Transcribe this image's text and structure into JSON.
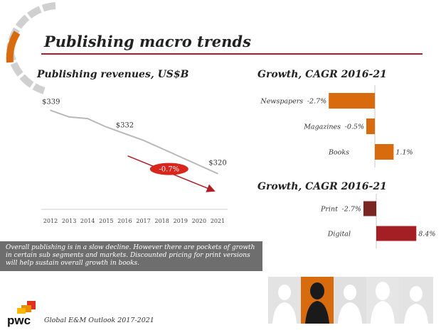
{
  "page": {
    "title": "Publishing macro trends",
    "footer": "Global E&M Outlook 2017-2021",
    "brand": "pwc",
    "note": "Overall publishing is in a slow decline. However there are pockets of growth in certain sub segments and markets.  Discounted pricing for print versions will help sustain overall growth in books."
  },
  "colors": {
    "accent_red": "#b11d24",
    "orange": "#d86b0d",
    "dark_red": "#7a2622",
    "crimson": "#a31f23",
    "gray_line": "#b8b8b8"
  },
  "chart_data": [
    {
      "type": "line",
      "title": "Publishing revenues, US$B",
      "x": [
        "2012",
        "2013",
        "2014",
        "2015",
        "2016",
        "2017",
        "2018",
        "2019",
        "2020",
        "2021"
      ],
      "values": [
        339,
        337,
        336.5,
        334,
        332,
        330,
        327.5,
        325,
        322.5,
        320
      ],
      "data_labels": [
        {
          "index": 0,
          "text": "$339"
        },
        {
          "index": 4,
          "text": "$332"
        },
        {
          "index": 9,
          "text": "$320"
        }
      ],
      "ylim": [
        318,
        341
      ],
      "annotation": {
        "text": "-0.7%",
        "trend_from": 2017,
        "trend_to": 2021
      }
    },
    {
      "type": "bar",
      "orientation": "horizontal",
      "title": "Growth, CAGR 2016-21",
      "categories": [
        "Newspapers",
        "Magazines",
        "Books"
      ],
      "values": [
        -2.7,
        -0.5,
        1.1
      ],
      "labels": [
        "-2.7%",
        "-0.5%",
        "1.1%"
      ],
      "colors": [
        "#d86b0d",
        "#d86b0d",
        "#d86b0d"
      ],
      "xlim": [
        -2.7,
        1.1
      ]
    },
    {
      "type": "bar",
      "orientation": "horizontal",
      "title": "Growth, CAGR 2016-21",
      "categories": [
        "Print",
        "Digital"
      ],
      "values": [
        -2.7,
        8.4
      ],
      "labels": [
        "-2.7%",
        "8.4%"
      ],
      "colors": [
        "#7a2622",
        "#a31f23"
      ],
      "xlim": [
        -2.7,
        8.4
      ]
    }
  ]
}
